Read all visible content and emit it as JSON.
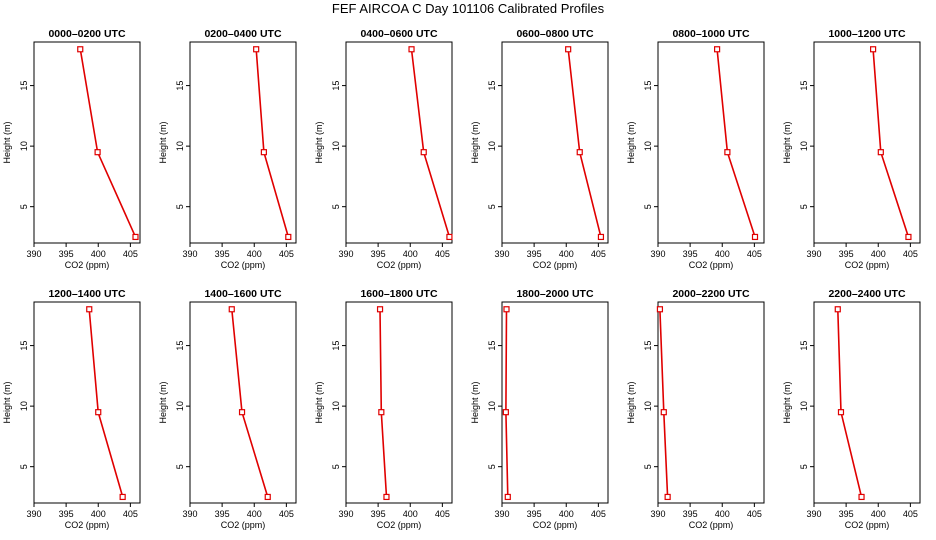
{
  "title": "FEF AIRCOA C  Day 101106  Calibrated Profiles",
  "chart_data": {
    "type": "line",
    "layout": "2 rows x 6 panels",
    "xlabel": "CO2 (ppm)",
    "ylabel": "Height (m)",
    "xlim": [
      390,
      406.5
    ],
    "ylim": [
      2,
      18.6
    ],
    "xticks": [
      390,
      395,
      400,
      405
    ],
    "yticks": [
      5,
      10,
      15
    ],
    "heights": [
      18,
      9.5,
      2.5
    ],
    "panels": [
      {
        "title": "0000–0200 UTC",
        "co2": [
          397.2,
          399.9,
          405.8
        ]
      },
      {
        "title": "0200–0400 UTC",
        "co2": [
          400.3,
          401.5,
          405.3
        ]
      },
      {
        "title": "0400–0600 UTC",
        "co2": [
          400.2,
          402.1,
          406.1
        ]
      },
      {
        "title": "0600–0800 UTC",
        "co2": [
          400.3,
          402.1,
          405.4
        ]
      },
      {
        "title": "0800–1000 UTC",
        "co2": [
          399.2,
          400.8,
          405.1
        ]
      },
      {
        "title": "1000–1200 UTC",
        "co2": [
          399.2,
          400.4,
          404.7
        ]
      },
      {
        "title": "1200–1400 UTC",
        "co2": [
          398.6,
          400.0,
          403.8
        ]
      },
      {
        "title": "1400–1600 UTC",
        "co2": [
          396.5,
          398.1,
          402.1
        ]
      },
      {
        "title": "1600–1800 UTC",
        "co2": [
          395.3,
          395.5,
          396.3
        ]
      },
      {
        "title": "1800–2000 UTC",
        "co2": [
          390.7,
          390.6,
          390.9
        ]
      },
      {
        "title": "2000–2200 UTC",
        "co2": [
          390.3,
          390.9,
          391.5
        ]
      },
      {
        "title": "2200–2400 UTC",
        "co2": [
          393.7,
          394.2,
          397.4
        ]
      }
    ]
  }
}
